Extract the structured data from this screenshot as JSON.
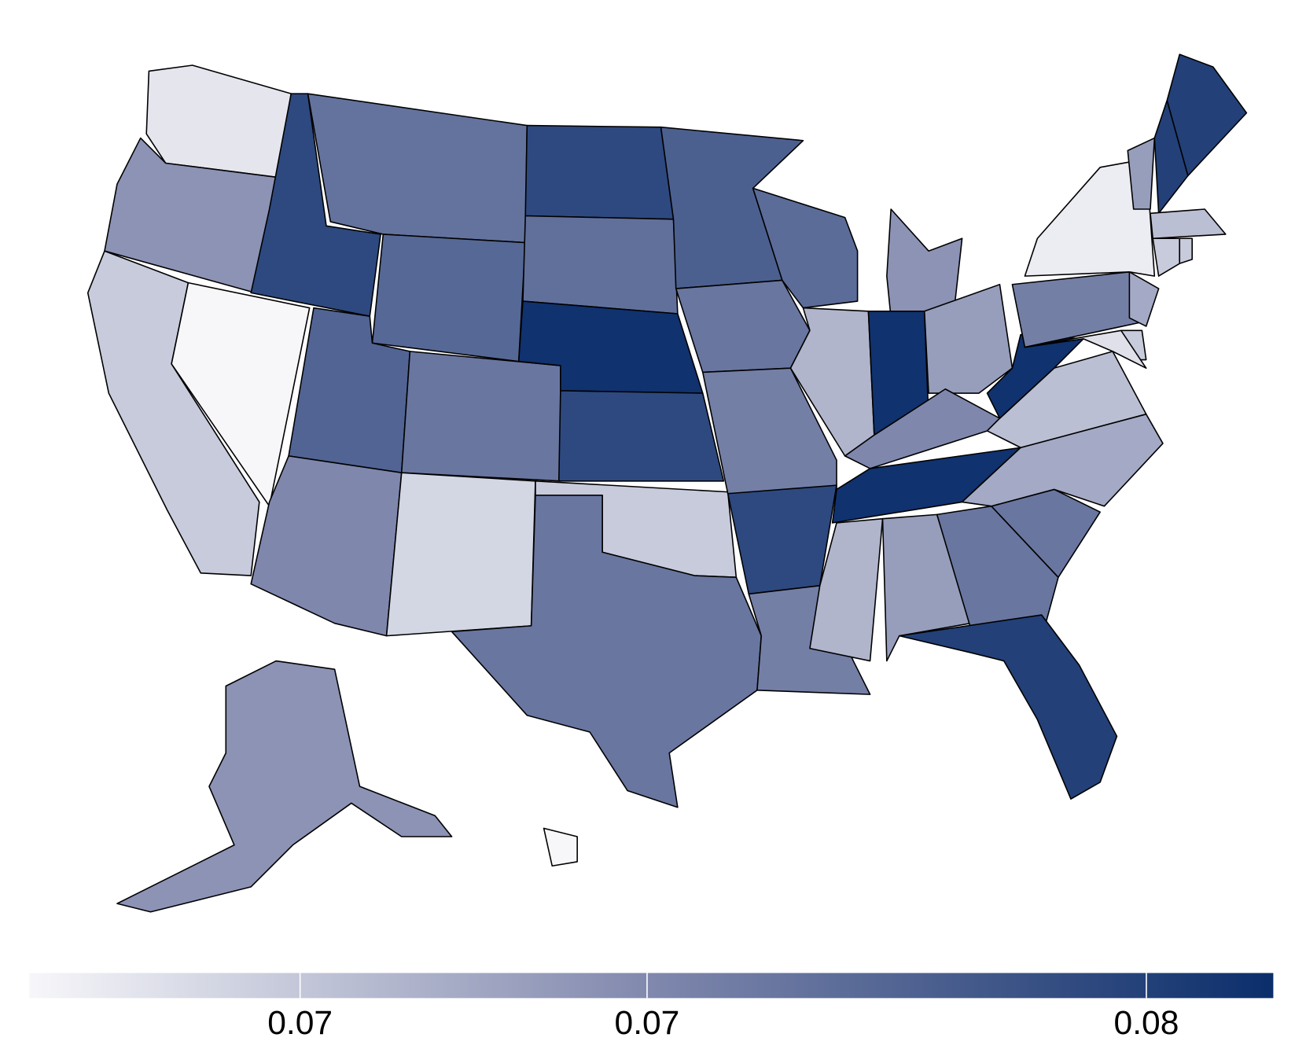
{
  "chart_data": {
    "type": "choropleth",
    "values": [
      0.068,
      0.0734,
      0.0697,
      0.0668,
      0.0793,
      0.0759,
      0.0768,
      0.0771,
      0.0742,
      0.0756,
      0.069,
      0.0793,
      0.0761,
      0.0812,
      0.0793,
      0.0697,
      0.0756,
      0.0774,
      0.0756,
      0.0749,
      0.0793,
      0.0749,
      0.0764,
      0.0712,
      0.0734,
      0.0812,
      0.0727,
      0.0742,
      0.0812,
      0.0712,
      0.0727,
      0.0756,
      0.08,
      0.0756,
      0.0719,
      0.0705,
      0.0812,
      0.0749,
      0.0675,
      0.0727,
      0.08,
      0.08,
      0.0705,
      0.0697,
      0.0697,
      0.0719,
      0.0697,
      0.0683,
      0.0734,
      0.0668
    ],
    "colorscale": [
      "#f7f7fa",
      "#8088ad",
      "#0b2e6b"
    ],
    "clim": [
      0.0668,
      0.0815
    ],
    "cticks": [
      {
        "value": 0.07,
        "label": "0.07"
      },
      {
        "value": 0.0741,
        "label": "0.07"
      },
      {
        "value": 0.08,
        "label": "0.08"
      }
    ]
  }
}
